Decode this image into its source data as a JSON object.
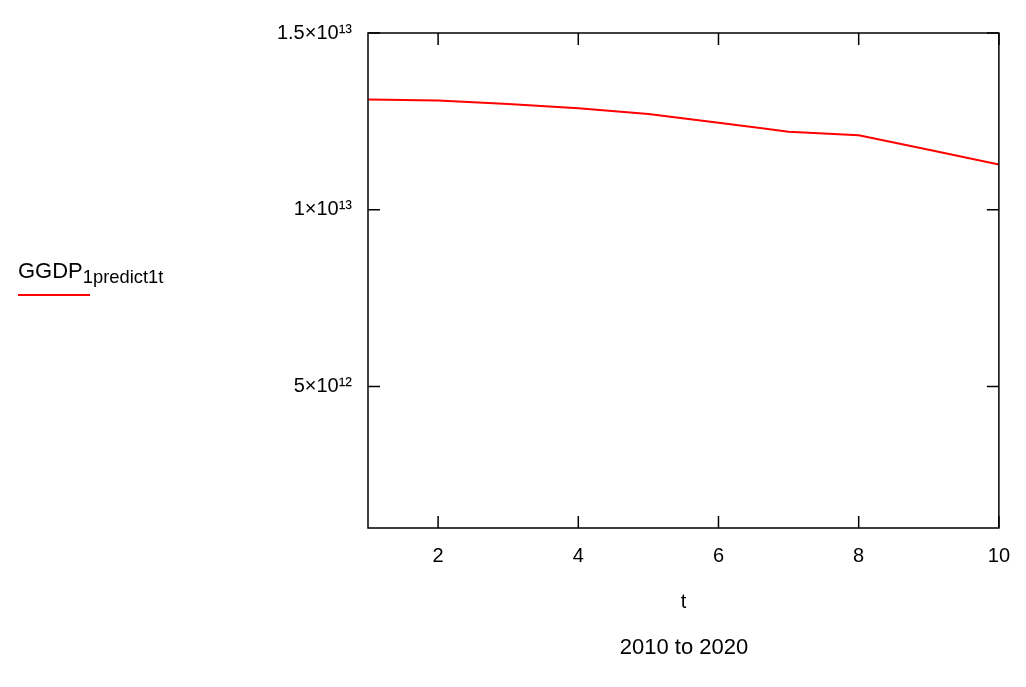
{
  "chart_data": {
    "type": "line",
    "xlabel": "t",
    "annotations": [
      "2010 to 2020"
    ],
    "x": [
      1,
      2,
      3,
      4,
      5,
      6,
      7,
      8,
      9,
      10
    ],
    "series": [
      {
        "name": "GGDP$_{1predict1}$$_{t}$",
        "color": "#ff0000",
        "values": [
          13120000000000.0,
          13090000000000.0,
          12990000000000.0,
          12870000000000.0,
          12710000000000.0,
          12460000000000.0,
          12210000000000.0,
          12110000000000.0,
          11700000000000.0,
          11280000000000.0
        ]
      }
    ],
    "xlim": [
      1,
      10
    ],
    "xticks": [
      2,
      4,
      6,
      8,
      10
    ],
    "ylim": [
      1000000000000.0,
      15000000000000.0
    ],
    "yticks": [
      {
        "value": 5000000000000.0,
        "label": "5×10¹²"
      },
      {
        "value": 10000000000000.0,
        "label": "1×10¹³"
      },
      {
        "value": 15000000000000.0,
        "label": "1.5×10¹³"
      }
    ],
    "grid": false,
    "legend": "left",
    "marker": "none",
    "line_style": "solid"
  }
}
